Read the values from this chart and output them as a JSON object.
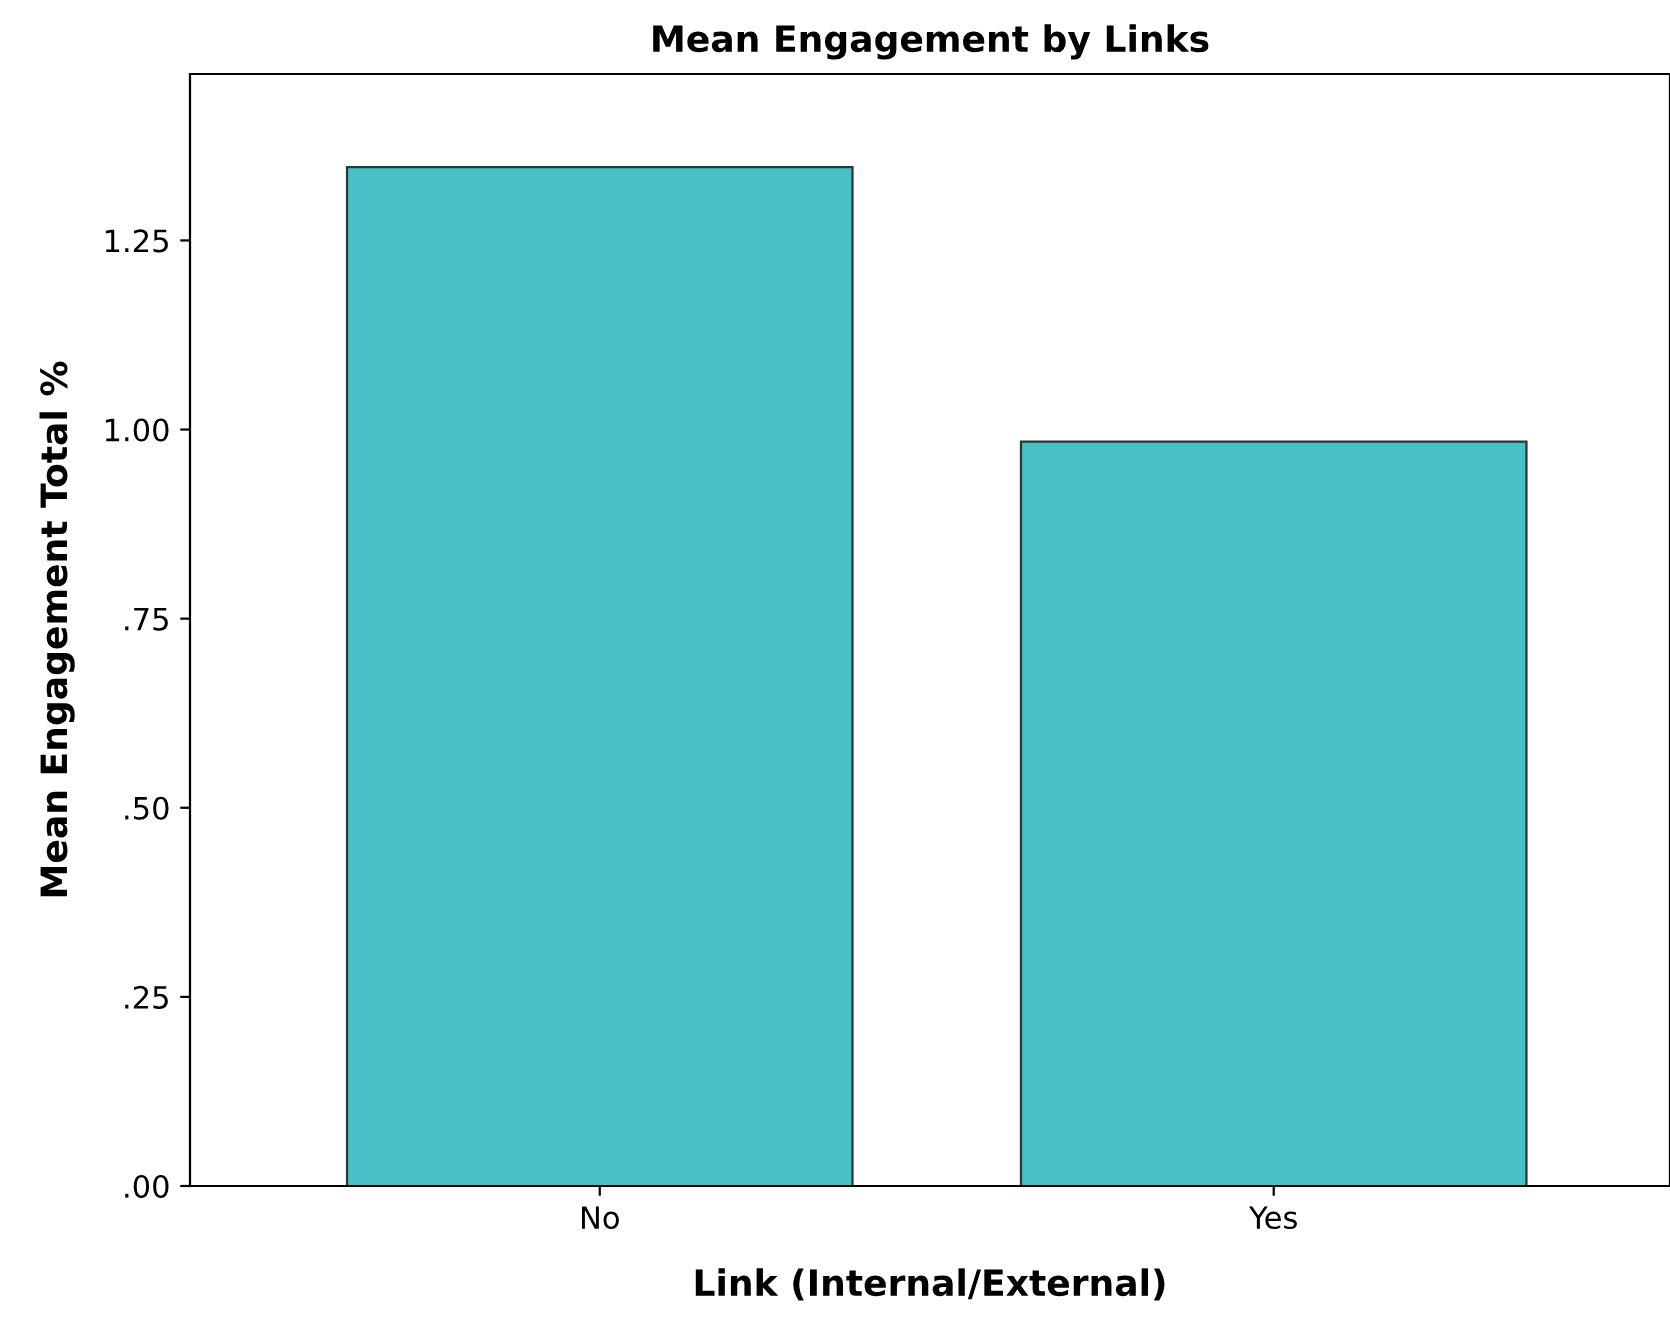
{
  "chart_data": {
    "type": "bar",
    "title": "Mean Engagement by Links",
    "xlabel": "Link (Internal/External)",
    "ylabel": "Mean Engagement Total %",
    "categories": [
      "No",
      "Yes"
    ],
    "values": [
      1.347,
      0.984
    ],
    "color": "#48c1c6",
    "ylim": [
      0,
      1.47
    ],
    "yticks": [
      {
        "value": 0,
        "label": ".00"
      },
      {
        "value": 0.25,
        "label": ".25"
      },
      {
        "value": 0.5,
        "label": ".50"
      },
      {
        "value": 0.75,
        "label": ".75"
      },
      {
        "value": 1.0,
        "label": "1.00"
      },
      {
        "value": 1.25,
        "label": "1.25"
      }
    ],
    "grid": false
  }
}
